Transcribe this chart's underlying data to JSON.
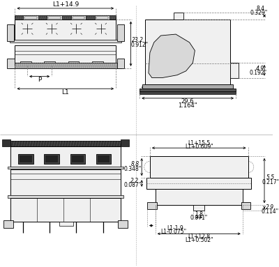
{
  "bg_color": "#ffffff",
  "lc": "#000000",
  "gc": "#777777",
  "fill_light": "#f0f0f0",
  "fill_mid": "#d8d8d8",
  "fill_dark": "#aaaaaa",
  "fill_black": "#222222",
  "annotations": {
    "tl_width": "L1+14.9",
    "tl_P": "P",
    "tl_L1": "L1",
    "tl_height1": "23.2",
    "tl_height2": "0.912\"",
    "tr_dim1": "8.4",
    "tr_dim2": "0.329\"",
    "tr_dim3": "4.9",
    "tr_dim4": "0.192\"",
    "tr_dim5": "29.6",
    "tr_dim6": "1.164\"",
    "br_w1": "L1+15.5",
    "br_w2": "L1+0.609\"",
    "br_h1": "8.8",
    "br_h2": "0.348\"",
    "br_h3": "2.2",
    "br_h4": "0.087\"",
    "br_cw1": "1.8",
    "br_cw2": "0.071\"",
    "br_bw1": "L1-1.9",
    "br_bw2": "L1-0.075\"",
    "br_bw3": "L1+12.8",
    "br_bw4": "L1+0.502\"",
    "br_rh1": "5.5",
    "br_rh2": "0.217\"",
    "br_rh3": "2.9",
    "br_rh4": "0.114\""
  }
}
